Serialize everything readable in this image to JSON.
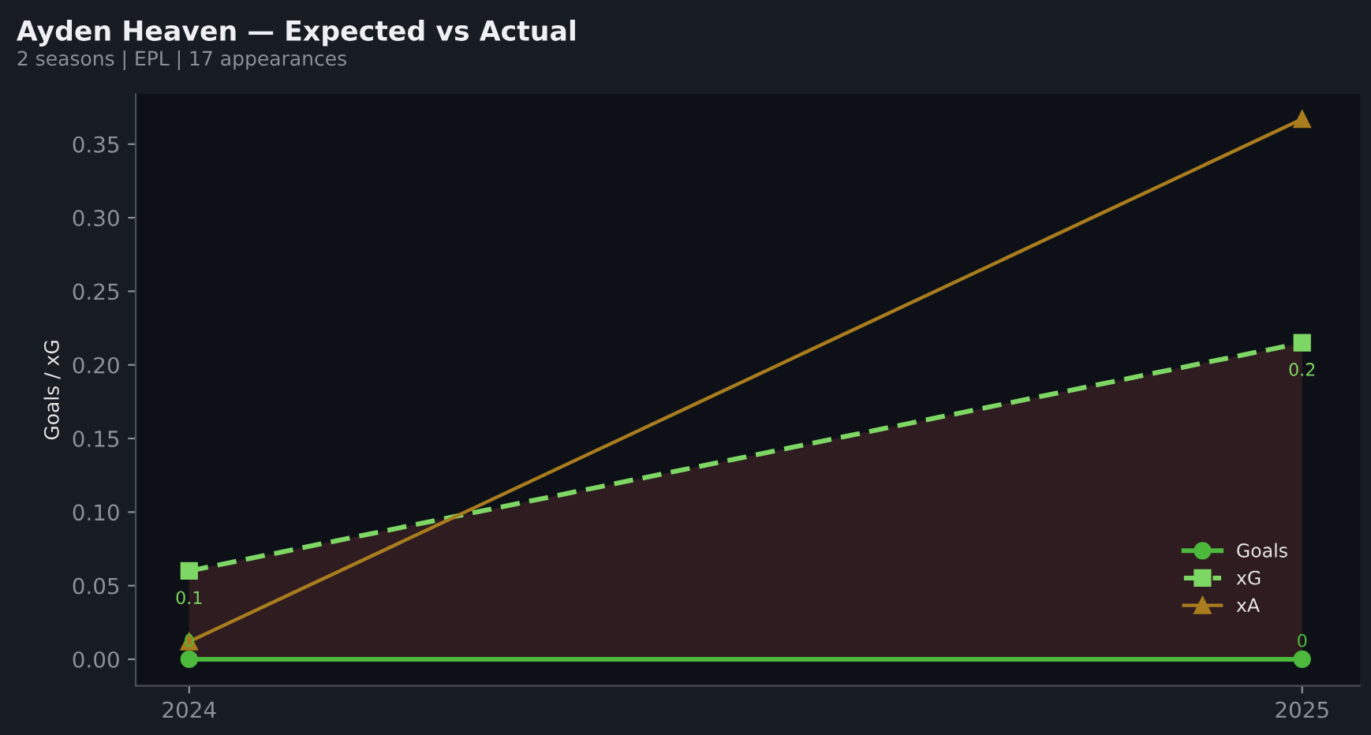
{
  "chart_data": {
    "type": "line",
    "title": "Ayden Heaven — Expected vs Actual",
    "subtitle": "2 seasons | EPL | 17 appearances",
    "ylabel": "Goals / xG",
    "x": [
      2024,
      2025
    ],
    "xlim": [
      2023.952,
      2025.052
    ],
    "xticks": [
      2024,
      2025
    ],
    "series": [
      {
        "name": "Goals",
        "color": "#4cb83c",
        "values": [
          0,
          0
        ],
        "marker": "circle",
        "line_style": "solid",
        "value_labels": [
          "0",
          "0"
        ]
      },
      {
        "name": "xG",
        "type": "area",
        "color": "#7ed664",
        "values": [
          0.06,
          0.215
        ],
        "marker": "square",
        "line_style": "dashed",
        "value_labels": [
          "0.1",
          "0.2"
        ]
      },
      {
        "name": "xA",
        "color": "#a97c1e",
        "values": [
          0.012,
          0.367
        ],
        "marker": "triangle",
        "line_style": "solid"
      }
    ],
    "ylim": [
      -0.018,
      0.384
    ],
    "yticks": [
      {
        "value": 0,
        "label": "0.00"
      },
      0.05,
      {
        "value": 0.1,
        "label": "0.10"
      },
      0.15,
      {
        "value": 0.2,
        "label": "0.20"
      },
      0.25,
      {
        "value": 0.3,
        "label": "0.30"
      },
      0.35
    ],
    "legend": "bottom right"
  }
}
